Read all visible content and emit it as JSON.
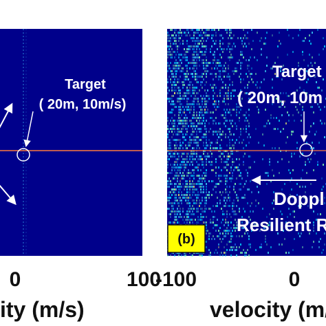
{
  "chart_data": [
    {
      "type": "heatmap",
      "panel": "a",
      "x_ticks": [
        "0",
        "100"
      ],
      "xlabel_visible": "ity (m/s)",
      "annotations": {
        "target_label": "Target",
        "target_coords": "( 20m, 10m/s)"
      },
      "target": {
        "range": 20,
        "velocity": 10
      },
      "colors": {
        "background": "#00008b",
        "horizontal_line": "#ff7a3d",
        "vertical_line": "#3ec7ff"
      }
    },
    {
      "type": "heatmap",
      "panel": "b",
      "x_ticks": [
        "-100",
        "0"
      ],
      "xlabel_visible": "velocity (m/s",
      "badge": "(b)",
      "annotations": {
        "target_label": "Target",
        "target_coords": "( 20m, 10m",
        "region_line1": "Doppl",
        "region_line2": "Resilient R"
      },
      "target": {
        "range": 20,
        "velocity": 10
      },
      "colors": {
        "background": "#00008b",
        "badge_bg": "#ffff00",
        "noise": "#00d7ff"
      }
    }
  ]
}
